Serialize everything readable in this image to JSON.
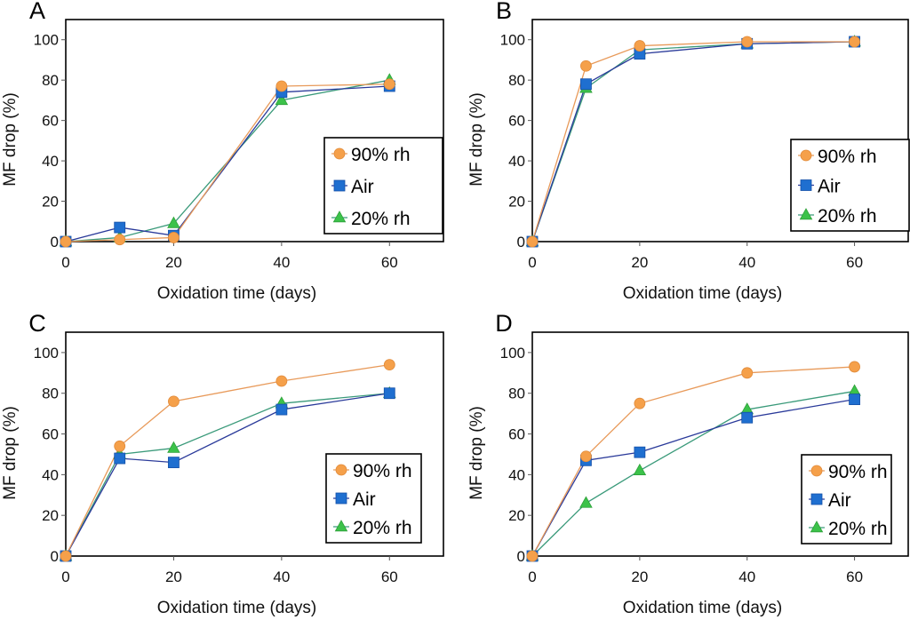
{
  "figure": {
    "series_styles": [
      {
        "name": "90% rh",
        "marker": "circle",
        "color": "#f5a04a",
        "line_color": "#e89a5a"
      },
      {
        "name": "Air",
        "marker": "square",
        "color": "#1f6fd0",
        "line_color": "#2a3a9a"
      },
      {
        "name": "20% rh",
        "marker": "triangle",
        "color": "#3cc24a",
        "line_color": "#3a9a7a"
      }
    ]
  },
  "chart_data": [
    {
      "type": "line",
      "panel": "A",
      "title": "",
      "xlabel": "Oxidation time (days)",
      "ylabel": "MF drop (%)",
      "xlim": [
        0,
        70
      ],
      "ylim": [
        0,
        110
      ],
      "xticks": [
        0,
        20,
        40,
        60
      ],
      "yticks": [
        0,
        20,
        40,
        60,
        80,
        100
      ],
      "grid": false,
      "legend": "right",
      "x": [
        0,
        10,
        20,
        40,
        60
      ],
      "series": [
        {
          "name": "90% rh",
          "values": [
            0,
            1,
            2,
            77,
            78
          ]
        },
        {
          "name": "Air",
          "values": [
            0,
            7,
            3,
            74,
            77
          ]
        },
        {
          "name": "20% rh",
          "values": [
            0,
            2,
            9,
            70,
            80
          ]
        }
      ]
    },
    {
      "type": "line",
      "panel": "B",
      "title": "",
      "xlabel": "Oxidation time (days)",
      "ylabel": "MF drop (%)",
      "xlim": [
        0,
        70
      ],
      "ylim": [
        0,
        110
      ],
      "xticks": [
        0,
        20,
        40,
        60
      ],
      "yticks": [
        0,
        20,
        40,
        60,
        80,
        100
      ],
      "grid": false,
      "legend": "right",
      "x": [
        0,
        10,
        20,
        40,
        60
      ],
      "series": [
        {
          "name": "90% rh",
          "values": [
            0,
            87,
            97,
            99,
            99
          ]
        },
        {
          "name": "Air",
          "values": [
            0,
            78,
            93,
            98,
            99
          ]
        },
        {
          "name": "20% rh",
          "values": [
            0,
            76,
            95,
            98,
            99
          ]
        }
      ]
    },
    {
      "type": "line",
      "panel": "C",
      "title": "",
      "xlabel": "Oxidation time (days)",
      "ylabel": "MF drop (%)",
      "xlim": [
        0,
        70
      ],
      "ylim": [
        0,
        110
      ],
      "xticks": [
        0,
        20,
        40,
        60
      ],
      "yticks": [
        0,
        20,
        40,
        60,
        80,
        100
      ],
      "grid": false,
      "legend": "right",
      "x": [
        0,
        10,
        20,
        40,
        60
      ],
      "series": [
        {
          "name": "90% rh",
          "values": [
            0,
            54,
            76,
            86,
            94
          ]
        },
        {
          "name": "Air",
          "values": [
            0,
            48,
            46,
            72,
            80
          ]
        },
        {
          "name": "20% rh",
          "values": [
            0,
            50,
            53,
            75,
            80
          ]
        }
      ]
    },
    {
      "type": "line",
      "panel": "D",
      "title": "",
      "xlabel": "Oxidation time (days)",
      "ylabel": "MF drop (%)",
      "xlim": [
        0,
        70
      ],
      "ylim": [
        0,
        110
      ],
      "xticks": [
        0,
        20,
        40,
        60
      ],
      "yticks": [
        0,
        20,
        40,
        60,
        80,
        100
      ],
      "grid": false,
      "legend": "right",
      "x": [
        0,
        10,
        20,
        40,
        60
      ],
      "series": [
        {
          "name": "90% rh",
          "values": [
            0,
            49,
            75,
            90,
            93
          ]
        },
        {
          "name": "Air",
          "values": [
            0,
            47,
            51,
            68,
            77
          ]
        },
        {
          "name": "20% rh",
          "values": [
            0,
            26,
            42,
            72,
            81
          ]
        }
      ]
    }
  ]
}
